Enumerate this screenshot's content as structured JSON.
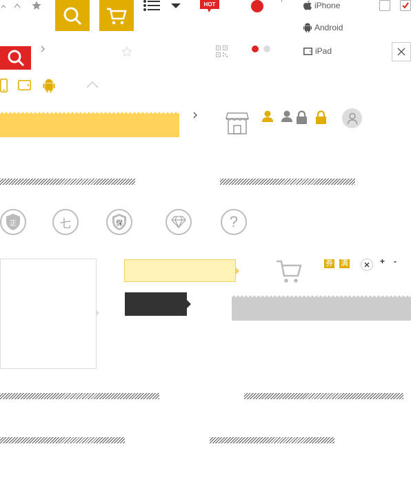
{
  "top_menu": {
    "hot_badge": "HOT",
    "devices": [
      {
        "label": "iPhone",
        "icon": "apple-icon"
      },
      {
        "label": "Android",
        "icon": "android-icon"
      },
      {
        "label": "iPad",
        "icon": "tablet-icon"
      }
    ]
  },
  "badges": {
    "zheng": "正",
    "seven": "七",
    "bao": "保",
    "question": "?",
    "quan": "券",
    "man": "满"
  },
  "controls": {
    "plus": "+",
    "minus": "-"
  },
  "colors": {
    "accent_yellow": "#e1ad00",
    "brand_red": "#e02424",
    "light_yellow": "#ffd35a",
    "pale_yellow": "#fff3b8",
    "dark_tooltip": "#333333",
    "gray_bar": "#cccccc"
  }
}
